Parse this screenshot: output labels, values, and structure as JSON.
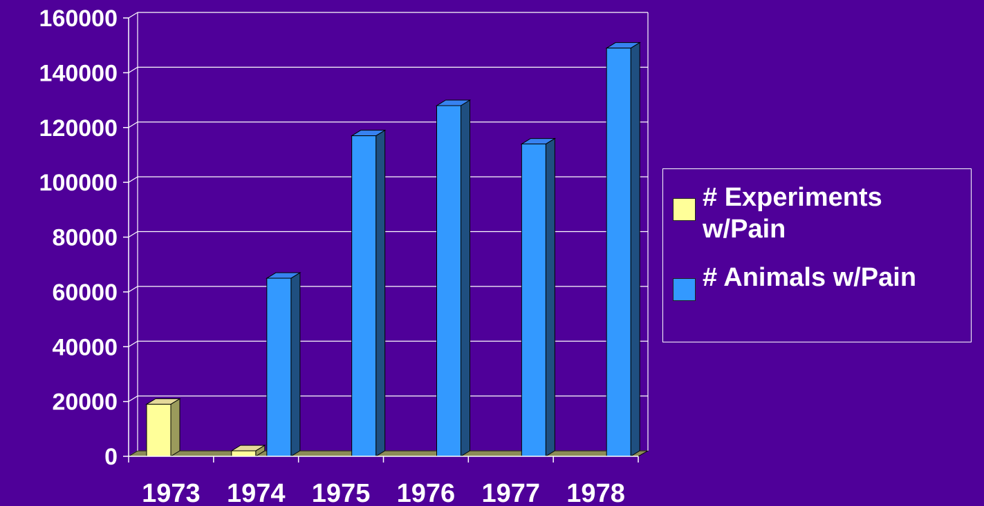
{
  "chart_data": {
    "type": "bar",
    "categories": [
      "1973",
      "1974",
      "1975",
      "1976",
      "1977",
      "1978"
    ],
    "series": [
      {
        "name": "# Experiments w/Pain",
        "values": [
          19000,
          2000,
          0,
          0,
          0,
          0
        ],
        "color": "#ffff99",
        "side": "#9b9b5c"
      },
      {
        "name": "# Animals w/Pain",
        "values": [
          0,
          65000,
          117000,
          128000,
          114000,
          149000
        ],
        "color": "#3399ff",
        "side": "#1f4f80"
      }
    ],
    "ylim": [
      0,
      160000
    ],
    "yticks": [
      "0",
      "20000",
      "40000",
      "60000",
      "80000",
      "100000",
      "120000",
      "140000",
      "160000"
    ],
    "grid": true,
    "legend_position": "right",
    "colors": {
      "background": "#4f0099",
      "grid": "#ffffff",
      "text": "#ffffff",
      "floor": "#8c8c57"
    }
  }
}
